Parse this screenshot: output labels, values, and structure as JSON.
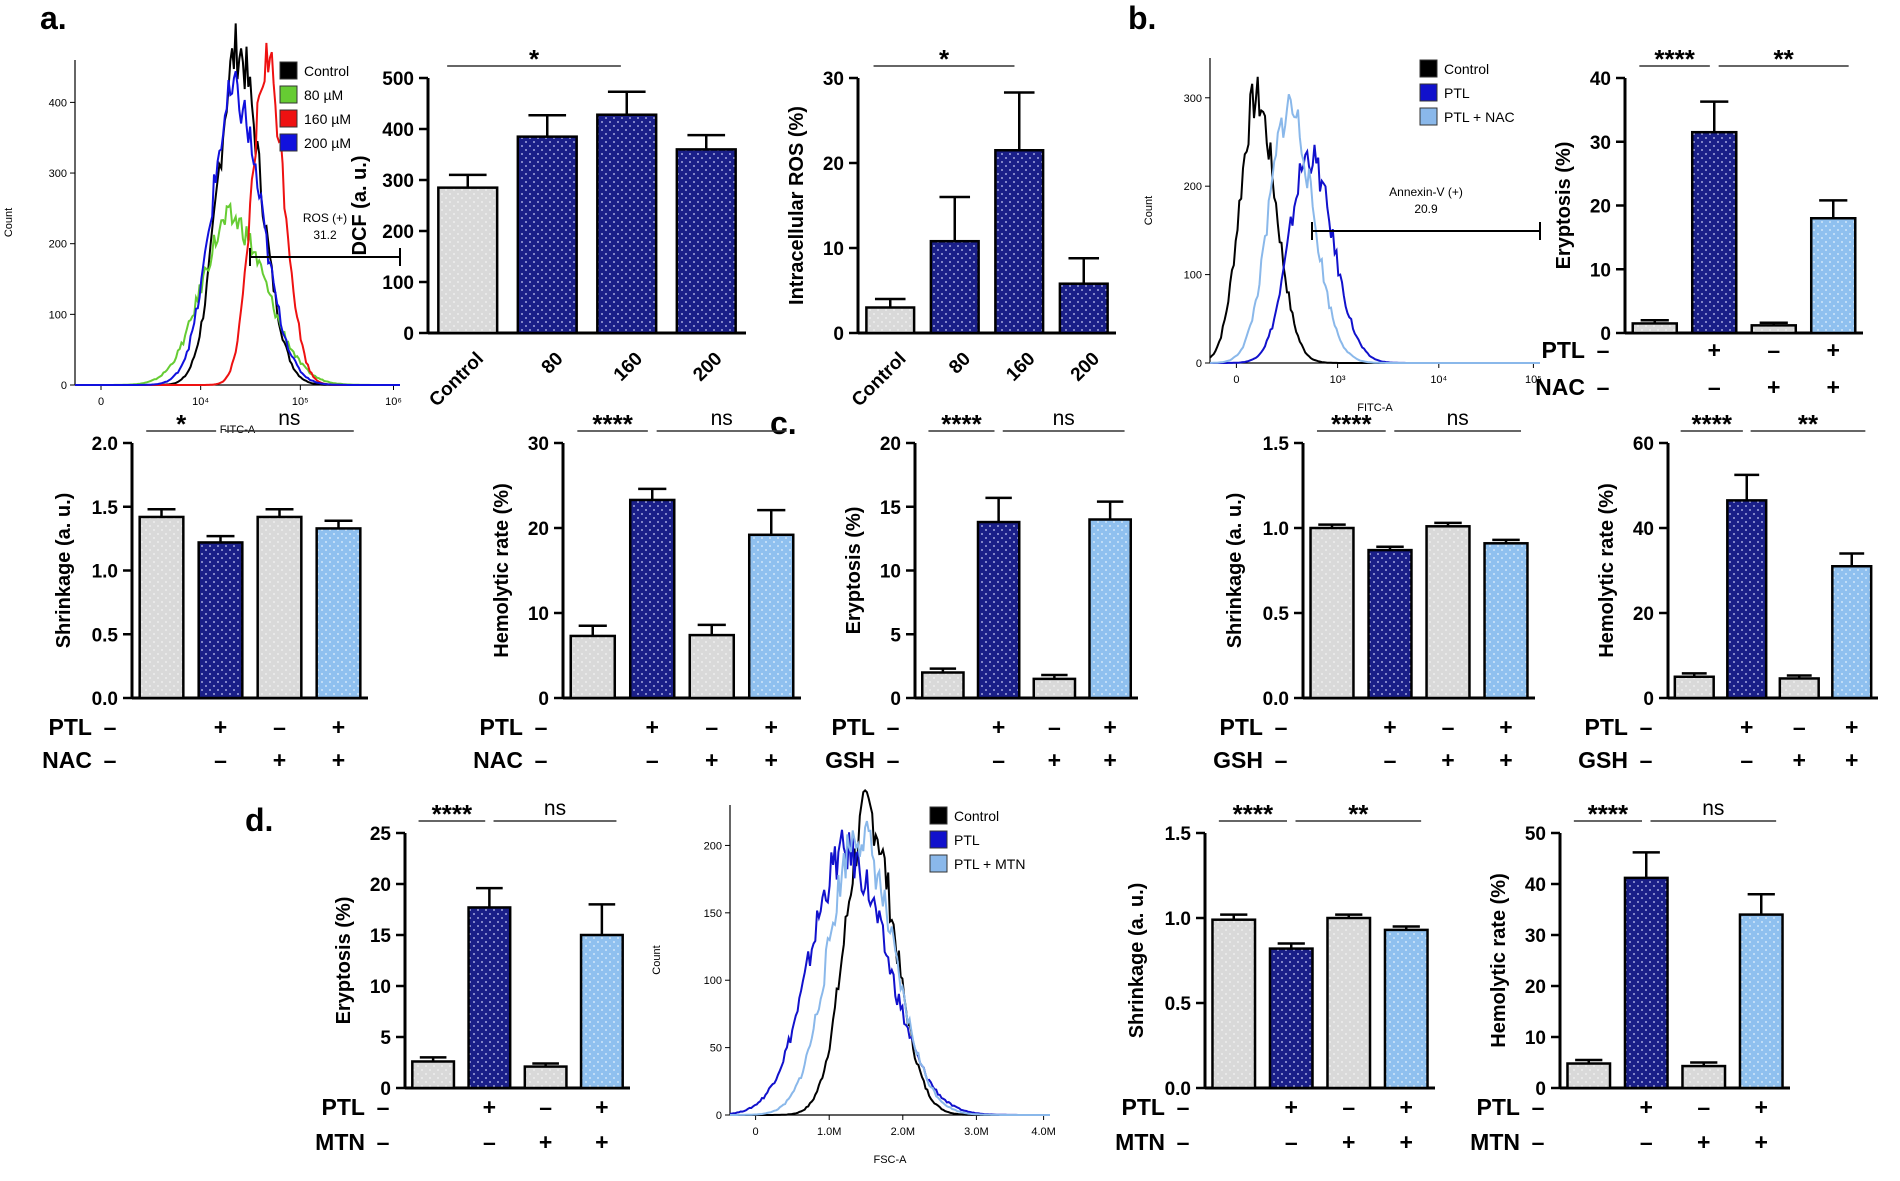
{
  "panel_labels": [
    "a.",
    "b.",
    "c.",
    "d."
  ],
  "chart_data": [
    {
      "id": "a-hist",
      "type": "histogram",
      "xlabel": "FITC-A",
      "ylabel": "Count",
      "xticks": [
        "0",
        "10⁴",
        "10⁵",
        "10⁶"
      ],
      "yticks": [
        "0",
        "100",
        "200",
        "300",
        "400"
      ],
      "legend": [
        {
          "name": "Control",
          "color": "#000000"
        },
        {
          "name": "80 µM",
          "color": "#66cc33"
        },
        {
          "name": "160 µM",
          "color": "#ee1111"
        },
        {
          "name": "200 µM",
          "color": "#1111dd"
        }
      ],
      "legend_position": "top-right",
      "gate": {
        "label": "ROS (+)",
        "value": "31.2"
      },
      "series": [
        {
          "name": "Control",
          "peak_x": 0.5,
          "peak_y": 475,
          "width": 0.06
        },
        {
          "name": "80 µM",
          "peak_x": 0.48,
          "peak_y": 235,
          "width": 0.09
        },
        {
          "name": "160 µM",
          "peak_x": 0.59,
          "peak_y": 460,
          "width": 0.045
        },
        {
          "name": "200 µM",
          "peak_x": 0.49,
          "peak_y": 410,
          "width": 0.07
        }
      ]
    },
    {
      "id": "a-dcf",
      "type": "bar",
      "categories": [
        "Control",
        "80",
        "160",
        "200"
      ],
      "values": [
        285,
        385,
        428,
        360
      ],
      "errors": [
        25,
        42,
        45,
        28
      ],
      "colors": [
        "grey",
        "navy",
        "navy",
        "navy"
      ],
      "ylabel": "DCF (a. u.)",
      "ylim": [
        0,
        500
      ],
      "yticks": [
        "0",
        "100",
        "200",
        "300",
        "400",
        "500"
      ],
      "rotate_x": true,
      "sig": [
        {
          "from": 0,
          "to": 2,
          "label": "*"
        }
      ]
    },
    {
      "id": "a-ros",
      "type": "bar",
      "categories": [
        "Control",
        "80",
        "160",
        "200"
      ],
      "values": [
        3,
        10.8,
        21.5,
        5.8
      ],
      "errors": [
        1,
        5.2,
        6.8,
        3
      ],
      "colors": [
        "grey",
        "navy",
        "navy",
        "navy"
      ],
      "ylabel": "Intracellular ROS (%)",
      "ylim": [
        0,
        30
      ],
      "yticks": [
        "0",
        "10",
        "20",
        "30"
      ],
      "rotate_x": true,
      "sig": [
        {
          "from": 0,
          "to": 2,
          "label": "*"
        }
      ]
    },
    {
      "id": "b-hist",
      "type": "histogram",
      "xlabel": "FITC-A",
      "ylabel": "Count",
      "xticks": [
        "0",
        "10³",
        "10⁴",
        "10⁵"
      ],
      "yticks": [
        "0",
        "100",
        "200",
        "300"
      ],
      "legend": [
        {
          "name": "Control",
          "color": "#000000"
        },
        {
          "name": "PTL",
          "color": "#1111cc"
        },
        {
          "name": "PTL + NAC",
          "color": "#8ab8ea"
        }
      ],
      "legend_position": "top-right",
      "gate": {
        "label": "Annexin-V (+)",
        "value": "20.9"
      },
      "series": [
        {
          "name": "Control",
          "peak_x": 0.14,
          "peak_y": 300,
          "width": 0.05
        },
        {
          "name": "PTL",
          "peak_x": 0.3,
          "peak_y": 235,
          "width": 0.06
        },
        {
          "name": "PTL + NAC",
          "peak_x": 0.24,
          "peak_y": 290,
          "width": 0.06
        }
      ]
    },
    {
      "id": "b-eryptosis",
      "type": "bar",
      "row_labels": [
        "PTL",
        "NAC"
      ],
      "signs": [
        [
          "–",
          "+",
          "–",
          "+"
        ],
        [
          "–",
          "–",
          "+",
          "+"
        ]
      ],
      "values": [
        1.5,
        31.5,
        1.2,
        18
      ],
      "errors": [
        0.5,
        4.8,
        0.4,
        2.8
      ],
      "colors": [
        "grey",
        "navy",
        "grey",
        "light"
      ],
      "ylabel": "Eryptosis (%)",
      "ylim": [
        0,
        40
      ],
      "yticks": [
        "0",
        "10",
        "20",
        "30",
        "40"
      ],
      "sig": [
        {
          "from": 0,
          "to": 1,
          "label": "****"
        },
        {
          "from": 1,
          "to": 3,
          "label": "**"
        }
      ]
    },
    {
      "id": "b-shrinkage",
      "type": "bar",
      "row_labels": [
        "PTL",
        "NAC"
      ],
      "signs": [
        [
          "–",
          "+",
          "–",
          "+"
        ],
        [
          "–",
          "–",
          "+",
          "+"
        ]
      ],
      "values": [
        1.42,
        1.22,
        1.42,
        1.33
      ],
      "errors": [
        0.06,
        0.05,
        0.06,
        0.06
      ],
      "colors": [
        "grey",
        "navy",
        "grey",
        "light"
      ],
      "ylabel": "Shrinkage (a. u.)",
      "ylim": [
        0,
        2.0
      ],
      "yticks": [
        "0.0",
        "0.5",
        "1.0",
        "1.5",
        "2.0"
      ],
      "sig": [
        {
          "from": 0,
          "to": 1,
          "label": "*"
        },
        {
          "from": 1,
          "to": 3,
          "label": "ns"
        }
      ]
    },
    {
      "id": "b-hemolytic",
      "type": "bar",
      "row_labels": [
        "PTL",
        "NAC"
      ],
      "signs": [
        [
          "–",
          "+",
          "–",
          "+"
        ],
        [
          "–",
          "–",
          "+",
          "+"
        ]
      ],
      "values": [
        7.3,
        23.3,
        7.4,
        19.2
      ],
      "errors": [
        1.2,
        1.3,
        1.2,
        2.9
      ],
      "colors": [
        "grey",
        "navy",
        "grey",
        "light"
      ],
      "ylabel": "Hemolytic rate (%)",
      "ylim": [
        0,
        30
      ],
      "yticks": [
        "0",
        "10",
        "20",
        "30"
      ],
      "sig": [
        {
          "from": 0,
          "to": 1,
          "label": "****"
        },
        {
          "from": 1,
          "to": 3,
          "label": "ns"
        }
      ]
    },
    {
      "id": "c-eryptosis",
      "type": "bar",
      "row_labels": [
        "PTL",
        "GSH"
      ],
      "signs": [
        [
          "–",
          "+",
          "–",
          "+"
        ],
        [
          "–",
          "–",
          "+",
          "+"
        ]
      ],
      "values": [
        2,
        13.8,
        1.5,
        14
      ],
      "errors": [
        0.3,
        1.9,
        0.3,
        1.4
      ],
      "colors": [
        "grey",
        "navy",
        "grey",
        "light"
      ],
      "ylabel": "Eryptosis (%)",
      "ylim": [
        0,
        20
      ],
      "yticks": [
        "0",
        "5",
        "10",
        "15",
        "20"
      ],
      "sig": [
        {
          "from": 0,
          "to": 1,
          "label": "****"
        },
        {
          "from": 1,
          "to": 3,
          "label": "ns"
        }
      ]
    },
    {
      "id": "c-shrinkage",
      "type": "bar",
      "row_labels": [
        "PTL",
        "GSH"
      ],
      "signs": [
        [
          "–",
          "+",
          "–",
          "+"
        ],
        [
          "–",
          "–",
          "+",
          "+"
        ]
      ],
      "values": [
        1.0,
        0.87,
        1.01,
        0.91
      ],
      "errors": [
        0.02,
        0.02,
        0.02,
        0.02
      ],
      "colors": [
        "grey",
        "navy",
        "grey",
        "light"
      ],
      "ylabel": "Shrinkage (a. u.)",
      "ylim": [
        0,
        1.5
      ],
      "yticks": [
        "0.0",
        "0.5",
        "1.0",
        "1.5"
      ],
      "sig": [
        {
          "from": 0,
          "to": 1,
          "label": "****"
        },
        {
          "from": 1,
          "to": 3,
          "label": "ns"
        }
      ]
    },
    {
      "id": "c-hemolytic",
      "type": "bar",
      "row_labels": [
        "PTL",
        "GSH"
      ],
      "signs": [
        [
          "–",
          "+",
          "–",
          "+"
        ],
        [
          "–",
          "–",
          "+",
          "+"
        ]
      ],
      "values": [
        5,
        46.5,
        4.6,
        31
      ],
      "errors": [
        0.8,
        6,
        0.7,
        3
      ],
      "colors": [
        "grey",
        "navy",
        "grey",
        "light"
      ],
      "ylabel": "Hemolytic rate (%)",
      "ylim": [
        0,
        60
      ],
      "yticks": [
        "0",
        "20",
        "40",
        "60"
      ],
      "sig": [
        {
          "from": 0,
          "to": 1,
          "label": "****"
        },
        {
          "from": 1,
          "to": 3,
          "label": "**"
        }
      ]
    },
    {
      "id": "d-eryptosis",
      "type": "bar",
      "row_labels": [
        "PTL",
        "MTN"
      ],
      "signs": [
        [
          "–",
          "+",
          "–",
          "+"
        ],
        [
          "–",
          "–",
          "+",
          "+"
        ]
      ],
      "values": [
        2.6,
        17.7,
        2.1,
        15
      ],
      "errors": [
        0.4,
        1.9,
        0.3,
        3
      ],
      "colors": [
        "grey",
        "navy",
        "grey",
        "light"
      ],
      "ylabel": "Eryptosis (%)",
      "ylim": [
        0,
        25
      ],
      "yticks": [
        "0",
        "5",
        "10",
        "15",
        "20",
        "25"
      ],
      "sig": [
        {
          "from": 0,
          "to": 1,
          "label": "****"
        },
        {
          "from": 1,
          "to": 3,
          "label": "ns"
        }
      ]
    },
    {
      "id": "d-hist",
      "type": "histogram",
      "xlabel": "FSC-A",
      "ylabel": "Count",
      "xticks": [
        "0",
        "1.0M",
        "2.0M",
        "3.0M",
        "4.0M"
      ],
      "yticks": [
        "0",
        "50",
        "100",
        "150",
        "200"
      ],
      "legend": [
        {
          "name": "Control",
          "color": "#000000"
        },
        {
          "name": "PTL",
          "color": "#1111cc"
        },
        {
          "name": "PTL + MTN",
          "color": "#8ab8ea"
        }
      ],
      "legend_position": "top-right",
      "series": [
        {
          "name": "Control",
          "peak_x": 0.43,
          "peak_y": 225,
          "width": 0.07
        },
        {
          "name": "PTL",
          "peak_x": 0.36,
          "peak_y": 195,
          "width": 0.11
        },
        {
          "name": "PTL + MTN",
          "peak_x": 0.4,
          "peak_y": 210,
          "width": 0.09
        }
      ]
    },
    {
      "id": "d-shrinkage",
      "type": "bar",
      "row_labels": [
        "PTL",
        "MTN"
      ],
      "signs": [
        [
          "–",
          "+",
          "–",
          "+"
        ],
        [
          "–",
          "–",
          "+",
          "+"
        ]
      ],
      "values": [
        0.99,
        0.82,
        1.0,
        0.93
      ],
      "errors": [
        0.03,
        0.03,
        0.02,
        0.02
      ],
      "colors": [
        "grey",
        "navy",
        "grey",
        "light"
      ],
      "ylabel": "Shrinkage (a. u.)",
      "ylim": [
        0,
        1.5
      ],
      "yticks": [
        "0.0",
        "0.5",
        "1.0",
        "1.5"
      ],
      "sig": [
        {
          "from": 0,
          "to": 1,
          "label": "****"
        },
        {
          "from": 1,
          "to": 3,
          "label": "**"
        }
      ]
    },
    {
      "id": "d-hemolytic",
      "type": "bar",
      "row_labels": [
        "PTL",
        "MTN"
      ],
      "signs": [
        [
          "–",
          "+",
          "–",
          "+"
        ],
        [
          "–",
          "–",
          "+",
          "+"
        ]
      ],
      "values": [
        4.8,
        41.2,
        4.3,
        34
      ],
      "errors": [
        0.7,
        5,
        0.7,
        4
      ],
      "colors": [
        "grey",
        "navy",
        "grey",
        "light"
      ],
      "ylabel": "Hemolytic rate (%)",
      "ylim": [
        0,
        50
      ],
      "yticks": [
        "0",
        "10",
        "20",
        "30",
        "40",
        "50"
      ],
      "sig": [
        {
          "from": 0,
          "to": 1,
          "label": "****"
        },
        {
          "from": 1,
          "to": 3,
          "label": "ns"
        }
      ]
    }
  ]
}
